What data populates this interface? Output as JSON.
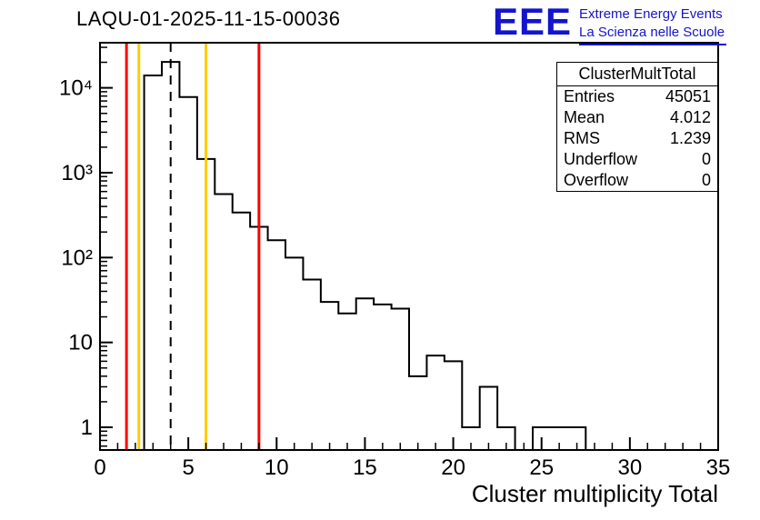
{
  "page": {
    "background": "#ffffff"
  },
  "header": {
    "title": "LAQU-01-2025-11-15-00036",
    "logo": {
      "text": "EEE",
      "line1": "Extreme Energy Events",
      "line2": "La Scienza nelle Scuole",
      "color": "#1414cc"
    }
  },
  "stats_box": {
    "title": "ClusterMultTotal",
    "rows": [
      {
        "label": "Entries",
        "value": "45051"
      },
      {
        "label": "Mean",
        "value": "4.012"
      },
      {
        "label": "RMS",
        "value": "1.239"
      },
      {
        "label": "Underflow",
        "value": "0"
      },
      {
        "label": "Overflow",
        "value": "0"
      }
    ]
  },
  "chart_data": {
    "type": "histogram-step",
    "title": "LAQU-01-2025-11-15-00036",
    "xlabel": "Cluster multiplicity Total",
    "ylabel": "",
    "x_range": [
      0,
      35
    ],
    "y_scale": "log",
    "y_range": [
      0.54,
      34000
    ],
    "grid": false,
    "line_color": "#000000",
    "bin_start": -0.5,
    "bin_width": 1,
    "bin_centers": [
      0,
      1,
      2,
      3,
      4,
      5,
      6,
      7,
      8,
      9,
      10,
      11,
      12,
      13,
      14,
      15,
      16,
      17,
      18,
      19,
      20,
      21,
      22,
      23,
      24,
      25,
      26,
      27,
      28,
      29,
      30,
      31,
      32,
      33,
      34
    ],
    "counts": [
      0,
      0,
      0,
      14000,
      20200,
      7800,
      1450,
      560,
      340,
      230,
      160,
      100,
      55,
      30,
      22,
      33,
      28,
      25,
      4,
      7,
      6,
      1,
      3,
      1,
      0,
      1,
      1,
      1,
      0,
      0,
      0,
      0,
      0,
      0,
      0
    ],
    "x_major_ticks": [
      0,
      5,
      10,
      15,
      20,
      25,
      30,
      35
    ],
    "x_minor_step": 1,
    "y_major_ticks": [
      {
        "value": 1,
        "label": "1"
      },
      {
        "value": 10,
        "label": "10"
      },
      {
        "value": 100,
        "label": "10²"
      },
      {
        "value": 1000,
        "label": "10³"
      },
      {
        "value": 10000,
        "label": "10⁴"
      }
    ],
    "vlines": [
      {
        "name": "red-lower-threshold-line",
        "x": 1.5,
        "color": "#ff0000",
        "style": "solid"
      },
      {
        "name": "yellow-lower-threshold-line",
        "x": 2.2,
        "color": "#ffcc00",
        "style": "solid"
      },
      {
        "name": "mean-marker-line",
        "x": 4.0,
        "color": "#000000",
        "style": "dashed"
      },
      {
        "name": "yellow-upper-threshold-line",
        "x": 6.0,
        "color": "#ffcc00",
        "style": "solid"
      },
      {
        "name": "red-upper-threshold-line",
        "x": 9.0,
        "color": "#ff0000",
        "style": "solid"
      }
    ]
  }
}
